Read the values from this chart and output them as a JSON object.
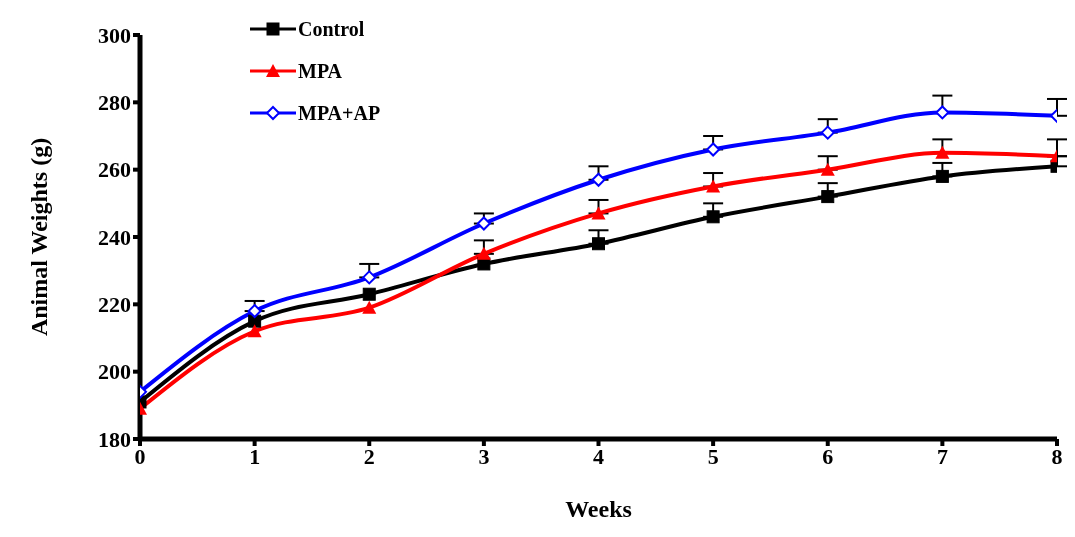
{
  "chart_data": {
    "type": "line",
    "xlabel": "Weeks",
    "ylabel": "Animal Weights (g)",
    "x": [
      0,
      1,
      2,
      3,
      4,
      5,
      6,
      7,
      8
    ],
    "xlim": [
      0,
      8
    ],
    "xticks": [
      0,
      1,
      2,
      3,
      4,
      5,
      6,
      7,
      8
    ],
    "ylim": [
      180,
      300
    ],
    "yticks": [
      180,
      200,
      220,
      240,
      260,
      280,
      300
    ],
    "grid": false,
    "legend": "top left",
    "line_style": "solid",
    "series": [
      {
        "name": "Control",
        "color": "#000000",
        "marker": "square",
        "values": [
          191,
          215,
          223,
          232,
          238,
          246,
          252,
          258,
          261
        ],
        "errors": [
          null,
          null,
          null,
          null,
          [
            238,
            242
          ],
          [
            246,
            250
          ],
          [
            252,
            256
          ],
          [
            258,
            262
          ],
          [
            261,
            264
          ]
        ]
      },
      {
        "name": "MPA",
        "color": "#ff0000",
        "marker": "triangle",
        "values": [
          189,
          212,
          219,
          235,
          247,
          255,
          260,
          265,
          264
        ],
        "errors": [
          null,
          null,
          null,
          [
            235,
            239
          ],
          [
            247,
            251
          ],
          [
            255,
            259
          ],
          [
            260,
            264
          ],
          [
            265,
            269
          ],
          [
            264,
            269
          ]
        ]
      },
      {
        "name": "MPA+AP",
        "color": "#0000ff",
        "marker": "diamond",
        "values": [
          194,
          218,
          228,
          244,
          257,
          266,
          271,
          277,
          276
        ],
        "errors": [
          null,
          [
            218,
            221
          ],
          [
            228,
            232
          ],
          [
            244,
            247
          ],
          [
            257,
            261
          ],
          [
            266,
            270
          ],
          [
            271,
            275
          ],
          [
            277,
            282
          ],
          [
            276,
            281
          ]
        ]
      }
    ]
  }
}
